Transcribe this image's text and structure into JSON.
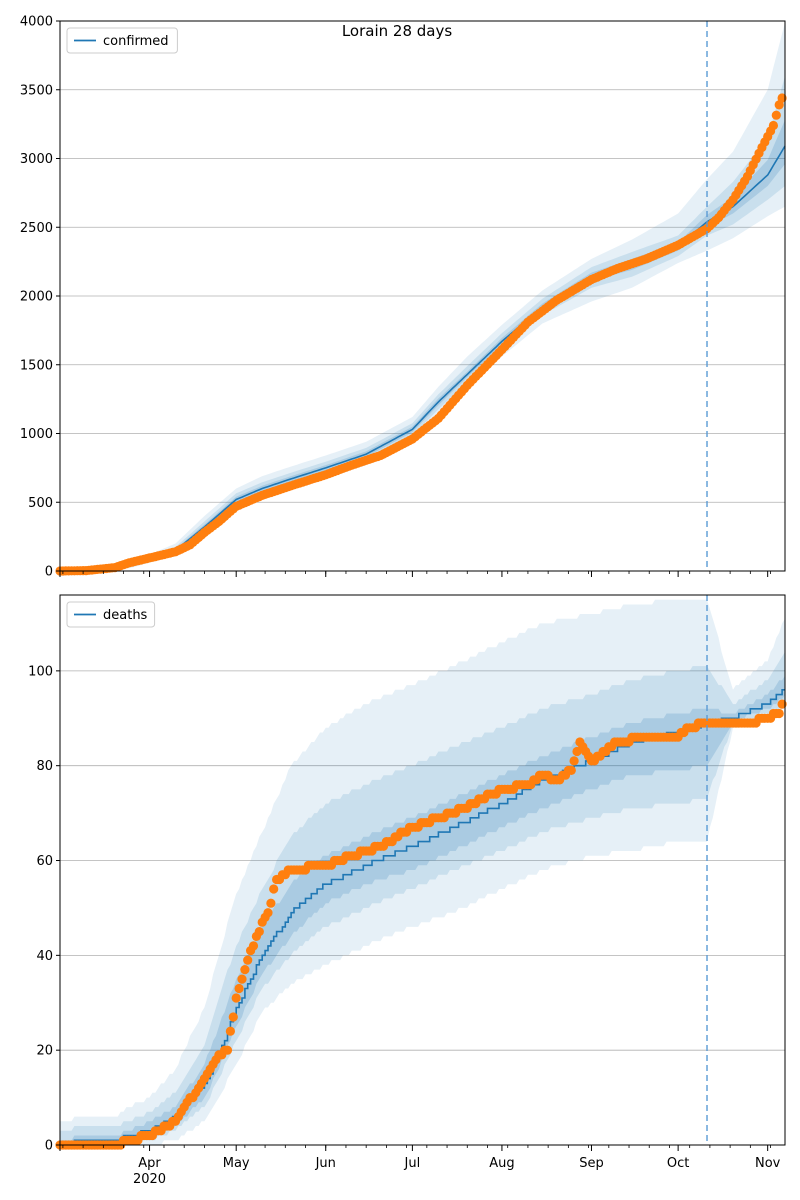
{
  "figure": {
    "title": "Lorain 28 days"
  },
  "chart_data": [
    {
      "type": "line",
      "panel": "top",
      "title": "Lorain 28 days",
      "ylim": [
        0,
        4000
      ],
      "yticks": [
        0,
        500,
        1000,
        1500,
        2000,
        2500,
        3000,
        3500,
        4000
      ],
      "xlim": [
        "2020-03-01",
        "2020-11-07"
      ],
      "grid": "y",
      "legend": {
        "placement": "top-left",
        "entries": [
          "confirmed"
        ]
      },
      "forecast_start": "2020-10-11",
      "colors": {
        "model": "#1f77b4",
        "observed": "#ff7f0e",
        "band": "#1f77b4"
      },
      "model": {
        "name": "confirmed",
        "x": [
          "2020-03-01",
          "2020-03-15",
          "2020-03-25",
          "2020-04-01",
          "2020-04-10",
          "2020-04-20",
          "2020-05-01",
          "2020-05-10",
          "2020-05-20",
          "2020-06-01",
          "2020-06-15",
          "2020-07-01",
          "2020-07-10",
          "2020-07-20",
          "2020-08-01",
          "2020-08-15",
          "2020-09-01",
          "2020-09-15",
          "2020-10-01",
          "2020-10-11",
          "2020-10-20",
          "2020-11-01",
          "2020-11-07"
        ],
        "y": [
          0,
          5,
          40,
          85,
          150,
          320,
          520,
          600,
          670,
          750,
          850,
          1030,
          1230,
          1430,
          1670,
          1920,
          2140,
          2230,
          2360,
          2540,
          2650,
          2880,
          3090
        ]
      },
      "bands": [
        {
          "level": "outer",
          "lower": [
            0,
            0,
            20,
            60,
            110,
            260,
            440,
            520,
            590,
            670,
            770,
            950,
            1130,
            1340,
            1560,
            1800,
            1960,
            2060,
            2240,
            2330,
            2420,
            2580,
            2650
          ],
          "upper": [
            0,
            15,
            70,
            120,
            200,
            400,
            600,
            690,
            760,
            840,
            940,
            1120,
            1340,
            1560,
            1790,
            2040,
            2270,
            2410,
            2600,
            2850,
            3050,
            3500,
            3990
          ]
        },
        {
          "level": "middle",
          "lower": [
            0,
            2,
            30,
            70,
            125,
            285,
            475,
            555,
            625,
            705,
            805,
            985,
            1175,
            1380,
            1610,
            1860,
            2060,
            2140,
            2290,
            2440,
            2520,
            2700,
            2800
          ],
          "upper": [
            0,
            9,
            55,
            105,
            175,
            360,
            565,
            645,
            715,
            795,
            895,
            1075,
            1285,
            1490,
            1730,
            1980,
            2210,
            2320,
            2440,
            2650,
            2830,
            3150,
            3600
          ]
        },
        {
          "level": "inner",
          "lower": [
            0,
            4,
            35,
            78,
            138,
            303,
            500,
            580,
            650,
            730,
            830,
            1010,
            1205,
            1410,
            1645,
            1895,
            2110,
            2190,
            2330,
            2500,
            2600,
            2800,
            2960
          ],
          "upper": [
            0,
            7,
            46,
            93,
            162,
            338,
            540,
            620,
            690,
            770,
            870,
            1050,
            1255,
            1450,
            1695,
            1945,
            2170,
            2270,
            2390,
            2590,
            2720,
            2990,
            3280
          ]
        }
      ],
      "observed": {
        "x": [
          "2020-03-01",
          "2020-03-10",
          "2020-03-20",
          "2020-03-25",
          "2020-04-01",
          "2020-04-10",
          "2020-04-15",
          "2020-04-20",
          "2020-04-25",
          "2020-05-01",
          "2020-05-10",
          "2020-05-20",
          "2020-06-01",
          "2020-06-10",
          "2020-06-20",
          "2020-07-01",
          "2020-07-10",
          "2020-07-20",
          "2020-08-01",
          "2020-08-10",
          "2020-08-20",
          "2020-09-01",
          "2020-09-10",
          "2020-09-20",
          "2020-10-01",
          "2020-10-11",
          "2020-10-15",
          "2020-10-20",
          "2020-10-25",
          "2020-10-30",
          "2020-11-03",
          "2020-11-05",
          "2020-11-06"
        ],
        "y": [
          0,
          3,
          25,
          60,
          95,
          140,
          190,
          280,
          360,
          470,
          550,
          620,
          700,
          770,
          840,
          960,
          1110,
          1350,
          1610,
          1810,
          1970,
          2120,
          2200,
          2270,
          2370,
          2490,
          2570,
          2700,
          2870,
          3080,
          3240,
          3390,
          3440
        ]
      }
    },
    {
      "type": "line",
      "panel": "bottom",
      "ylim": [
        0,
        116
      ],
      "yticks": [
        0,
        20,
        40,
        60,
        80,
        100
      ],
      "xlim": [
        "2020-03-01",
        "2020-11-07"
      ],
      "grid": "y",
      "legend": {
        "placement": "top-left",
        "entries": [
          "deaths"
        ]
      },
      "forecast_start": "2020-10-11",
      "x_axis": {
        "labels": [
          "Apr",
          "May",
          "Jun",
          "Jul",
          "Aug",
          "Sep",
          "Oct",
          "Nov"
        ],
        "label_dates": [
          "2020-04-01",
          "2020-05-01",
          "2020-06-01",
          "2020-07-01",
          "2020-08-01",
          "2020-09-01",
          "2020-10-01",
          "2020-11-01"
        ],
        "year_label": "2020",
        "year_date": "2020-04-01"
      },
      "colors": {
        "model": "#1f77b4",
        "observed": "#ff7f0e",
        "band": "#1f77b4"
      },
      "model": {
        "name": "deaths",
        "x": [
          "2020-03-01",
          "2020-03-10",
          "2020-03-20",
          "2020-03-25",
          "2020-04-01",
          "2020-04-10",
          "2020-04-20",
          "2020-04-25",
          "2020-05-01",
          "2020-05-10",
          "2020-05-20",
          "2020-06-01",
          "2020-06-15",
          "2020-07-01",
          "2020-07-15",
          "2020-08-01",
          "2020-08-15",
          "2020-09-01",
          "2020-09-15",
          "2020-10-01",
          "2020-10-11",
          "2020-10-20",
          "2020-11-01",
          "2020-11-07"
        ],
        "y": [
          0,
          1,
          1,
          2,
          3,
          6,
          13,
          19,
          29,
          40,
          49,
          55,
          59,
          63,
          67,
          72,
          77,
          81,
          85,
          87,
          89,
          90,
          93,
          96
        ]
      },
      "bands": [
        {
          "level": "outer",
          "lower": [
            0,
            0,
            0,
            0,
            0,
            1,
            5,
            10,
            17,
            28,
            34,
            38,
            42,
            46,
            49,
            54,
            58,
            61,
            62,
            64,
            64,
            88,
            90,
            92
          ],
          "upper": [
            5,
            6,
            6,
            8,
            10,
            16,
            29,
            40,
            53,
            66,
            80,
            88,
            93,
            97,
            101,
            106,
            110,
            112,
            114,
            115,
            115,
            96,
            102,
            111
          ]
        },
        {
          "level": "middle",
          "lower": [
            0,
            0,
            0,
            1,
            1,
            3,
            8,
            14,
            22,
            33,
            40,
            46,
            50,
            54,
            58,
            62,
            66,
            69,
            71,
            72,
            73,
            89,
            91,
            93
          ],
          "upper": [
            3,
            4,
            4,
            5,
            7,
            11,
            21,
            31,
            42,
            54,
            65,
            72,
            76,
            80,
            84,
            88,
            92,
            95,
            98,
            100,
            101,
            93,
            98,
            104
          ]
        },
        {
          "level": "inner",
          "lower": [
            0,
            0,
            1,
            1,
            2,
            4,
            10,
            16,
            25,
            36,
            44,
            51,
            55,
            58,
            62,
            67,
            71,
            75,
            78,
            79,
            80,
            89.5,
            92,
            94.5
          ],
          "upper": [
            1,
            2,
            2,
            3,
            5,
            8,
            17,
            25,
            35,
            46,
            55,
            61,
            65,
            69,
            73,
            78,
            82,
            86,
            89,
            91,
            92,
            91,
            95,
            99
          ]
        }
      ],
      "observed": {
        "x": [
          "2020-03-01",
          "2020-03-20",
          "2020-03-25",
          "2020-04-01",
          "2020-04-10",
          "2020-04-20",
          "2020-04-25",
          "2020-04-28",
          "2020-05-01",
          "2020-05-05",
          "2020-05-08",
          "2020-05-12",
          "2020-05-15",
          "2020-05-20",
          "2020-06-01",
          "2020-06-10",
          "2020-06-20",
          "2020-07-01",
          "2020-07-15",
          "2020-08-01",
          "2020-08-10",
          "2020-08-15",
          "2020-08-20",
          "2020-08-25",
          "2020-08-28",
          "2020-09-01",
          "2020-09-10",
          "2020-09-20",
          "2020-10-01",
          "2020-10-05",
          "2020-10-11",
          "2020-10-20",
          "2020-10-25",
          "2020-11-01",
          "2020-11-05",
          "2020-11-06"
        ],
        "y": [
          0,
          0,
          1,
          2,
          5,
          14,
          19,
          20,
          31,
          39,
          44,
          49,
          56,
          58,
          59,
          61,
          63,
          67,
          70,
          75,
          76,
          78,
          77,
          79,
          85,
          81,
          85,
          86,
          86,
          88,
          89,
          89,
          89,
          90,
          91,
          93
        ]
      }
    }
  ]
}
